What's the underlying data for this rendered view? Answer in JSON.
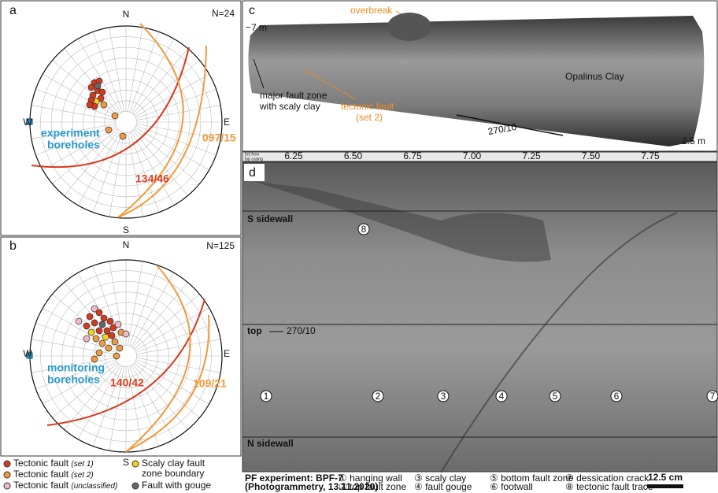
{
  "panel_a": {
    "label": "a",
    "north": "N",
    "east": "E",
    "south": "S",
    "west": "W",
    "count": "N=24",
    "boreholes": [
      "experiment",
      "boreholes"
    ],
    "plane_1": "134/46",
    "plane_2": "097/15"
  },
  "panel_b": {
    "label": "b",
    "north": "N",
    "east": "E",
    "south": "S",
    "west": "W",
    "count": "N=125",
    "boreholes": [
      "monitoring",
      "boreholes"
    ],
    "plane_1": "140/42",
    "plane_2": "109/21"
  },
  "legend": [
    {
      "text": "Tectonic fault",
      "note": "(set 1)"
    },
    {
      "text": "Tectonic fault",
      "note": "(set 2)"
    },
    {
      "text": "Tectonic fault",
      "note": "(unclassified)"
    },
    {
      "text": "Scaly clay fault",
      "note": "zone boundary"
    },
    {
      "text": "Fault with gouge",
      "note": ""
    }
  ],
  "panel_c": {
    "label": "c",
    "overbreak": "overbreak",
    "length": "~7 m",
    "major_fault": [
      "major fault zone",
      "with scaly clay"
    ],
    "rock": "Opalinus Clay",
    "tectonic_fault": [
      "tectonic fault",
      "(set 2)"
    ],
    "orientation": "270/10",
    "diameter": "2.5 m"
  },
  "scale": {
    "unit": [
      "[m] from",
      "top casing"
    ],
    "ticks": [
      "6.25",
      "6.50",
      "6.75",
      "7.00",
      "7.25",
      "7.50",
      "7.75"
    ]
  },
  "panel_d": {
    "label": "d",
    "s_sidewall": "S sidewall",
    "trace_marker": "8",
    "top": "top",
    "orientation": "270/10",
    "markers": [
      "1",
      "2",
      "3",
      "4",
      "5",
      "6",
      "7"
    ],
    "n_sidewall": "N sidewall"
  },
  "footer": {
    "title": "PF experiment: BPF-7",
    "subtitle": "(Photogrammetry, 13.11.2020)",
    "items": [
      "① hanging wall",
      "② top fault zone",
      "③ scaly clay",
      "④ fault gouge",
      "⑤ bottom fault zone",
      "⑥ footwall",
      "⑦ dessication crack",
      "⑧ tectonic fault trace"
    ],
    "scalebar": "12.5 cm"
  }
}
